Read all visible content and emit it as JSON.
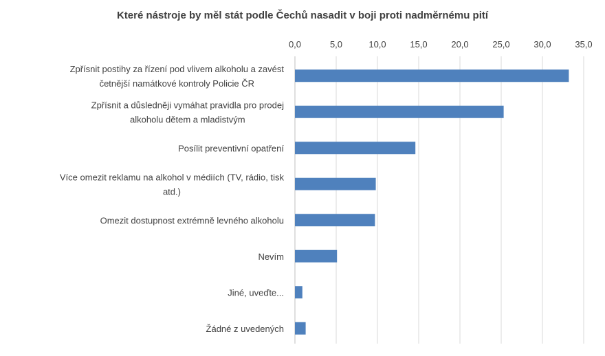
{
  "chart_data": {
    "type": "bar",
    "orientation": "horizontal",
    "title": "Které nástroje by měl stát podle Čechů nasadit v boji proti nadměrnému pití",
    "xlim": [
      0,
      35
    ],
    "xticks": [
      "0,0",
      "5,0",
      "10,0",
      "15,0",
      "20,0",
      "25,0",
      "30,0",
      "35,0"
    ],
    "xtick_values": [
      0,
      5,
      10,
      15,
      20,
      25,
      30,
      35
    ],
    "axis_position": "top",
    "grid": true,
    "bar_color": "#4f81bd",
    "categories": [
      [
        "Zpřísnit postihy za řízení pod vlivem alkoholu a zavést",
        "četnější namátkové kontroly Policie ČR"
      ],
      [
        "Zpřísnit a důsledněji vymáhat pravidla pro prodej",
        "alkoholu dětem a mladistvým"
      ],
      [
        "Posílit preventivní opatření"
      ],
      [
        "Více omezit reklamu na alkohol v médiích (TV, rádio, tisk",
        "atd.)"
      ],
      [
        "Omezit dostupnost extrémně levného alkoholu"
      ],
      [
        "Nevím"
      ],
      [
        "Jiné, uveďte..."
      ],
      [
        "Žádné z uvedených"
      ]
    ],
    "values": [
      33.2,
      25.3,
      14.6,
      9.8,
      9.7,
      5.1,
      0.9,
      1.3
    ]
  }
}
